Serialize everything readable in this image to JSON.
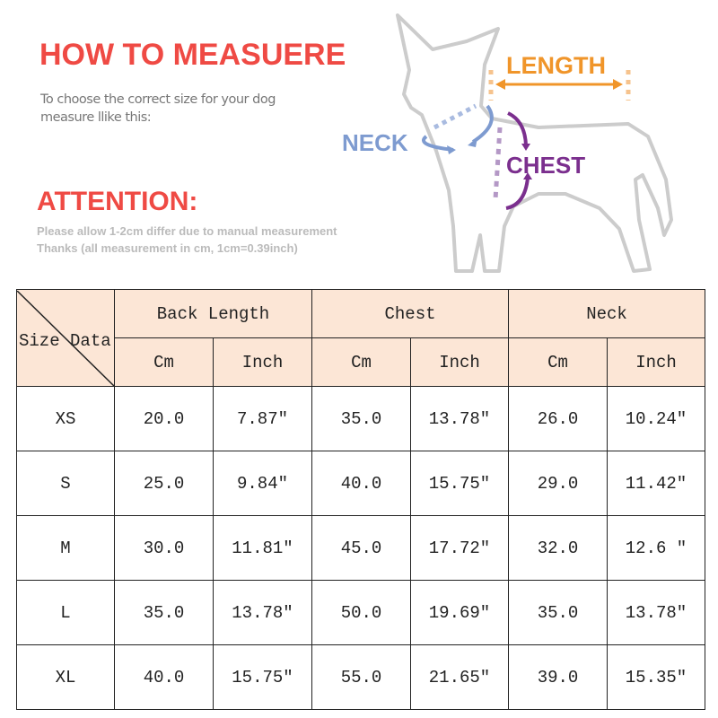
{
  "header": {
    "title": "HOW TO MEASUERE",
    "subtitle_line1": "To choose the correct size for your dog",
    "subtitle_line2": "measure llike this:",
    "attention_title": "ATTENTION:",
    "attention_line1": "Please allow 1-2cm differ due to manual measurement",
    "attention_line2": "Thanks (all measurement in cm, 1cm=0.39inch)"
  },
  "diagram": {
    "length_label": "LENGTH",
    "neck_label": "NECK",
    "chest_label": "CHEST",
    "colors": {
      "title": "#ef4a44",
      "length": "#f0952a",
      "neck": "#7e9bd0",
      "chest": "#7b2f8e",
      "outline": "#cccccc",
      "header_bg": "#fce6d6"
    }
  },
  "table": {
    "corner_label": "Size Data",
    "groups": [
      "Back Length",
      "Chest",
      "Neck"
    ],
    "units": [
      "Cm",
      "Inch",
      "Cm",
      "Inch",
      "Cm",
      "Inch"
    ],
    "rows": [
      {
        "size": "XS",
        "values": [
          "20.0",
          "7.87″",
          "35.0",
          "13.78″",
          "26.0",
          "10.24″"
        ]
      },
      {
        "size": "S",
        "values": [
          "25.0",
          "9.84″",
          "40.0",
          "15.75″",
          "29.0",
          "11.42″"
        ]
      },
      {
        "size": "M",
        "values": [
          "30.0",
          "11.81″",
          "45.0",
          "17.72″",
          "32.0",
          "12.6 ″"
        ]
      },
      {
        "size": "L",
        "values": [
          "35.0",
          "13.78″",
          "50.0",
          "19.69″",
          "35.0",
          "13.78″"
        ]
      },
      {
        "size": "XL",
        "values": [
          "40.0",
          "15.75″",
          "55.0",
          "21.65″",
          "39.0",
          "15.35″"
        ]
      }
    ]
  }
}
